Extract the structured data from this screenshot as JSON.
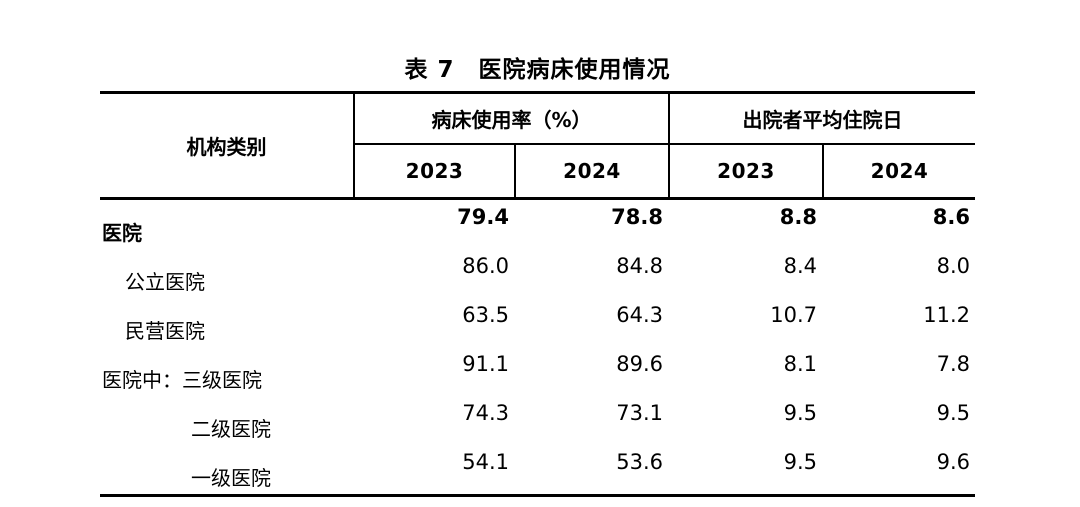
{
  "title": "表 7　医院病床使用情况",
  "colors": {
    "text": "#000000",
    "border": "#000000",
    "background": "#ffffff"
  },
  "table": {
    "org_header": "机构类别",
    "groups": [
      {
        "label": "病床使用率（%）",
        "years": [
          "2023",
          "2024"
        ]
      },
      {
        "label": "出院者平均住院日",
        "years": [
          "2023",
          "2024"
        ]
      }
    ],
    "rows": [
      {
        "label": "医院",
        "values": [
          "79.4",
          "78.8",
          "8.8",
          "8.6"
        ]
      },
      {
        "label": "公立医院",
        "values": [
          "86.0",
          "84.8",
          "8.4",
          "8.0"
        ]
      },
      {
        "label": "民营医院",
        "values": [
          "63.5",
          "64.3",
          "10.7",
          "11.2"
        ]
      },
      {
        "label": "医院中：三级医院",
        "values": [
          "91.1",
          "89.6",
          "8.1",
          "7.8"
        ]
      },
      {
        "label": "二级医院",
        "values": [
          "74.3",
          "73.1",
          "9.5",
          "9.5"
        ]
      },
      {
        "label": "一级医院",
        "values": [
          "54.1",
          "53.6",
          "9.5",
          "9.6"
        ]
      }
    ]
  }
}
